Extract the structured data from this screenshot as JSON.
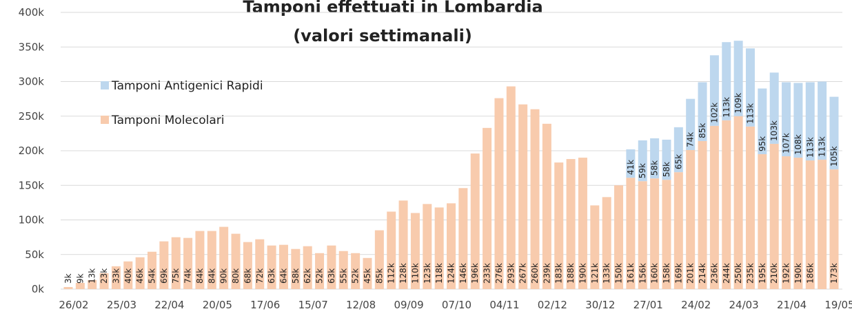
{
  "chart_data": {
    "type": "stacked_bar",
    "title_lines": [
      "Tamponi effettuati in Lombardia",
      "(valori settimanali)"
    ],
    "categories": [
      "26/02",
      null,
      null,
      null,
      "25/03",
      null,
      null,
      null,
      "22/04",
      null,
      null,
      null,
      "20/05",
      null,
      null,
      null,
      "17/06",
      null,
      null,
      null,
      "15/07",
      null,
      null,
      null,
      "12/08",
      null,
      null,
      null,
      "09/09",
      null,
      null,
      null,
      "07/10",
      null,
      null,
      null,
      "04/11",
      null,
      null,
      null,
      "02/12",
      null,
      null,
      null,
      "30/12",
      null,
      null,
      null,
      "27/01",
      null,
      null,
      null,
      "24/02",
      null,
      null,
      null,
      "24/03",
      null,
      null,
      null,
      "21/04",
      null,
      null,
      null,
      "19/05"
    ],
    "series": [
      {
        "name": "Tamponi Molecolari",
        "color": "#f8cbad",
        "values": [
          3000,
          9000,
          13000,
          23000,
          33000,
          40000,
          46000,
          54000,
          69000,
          75000,
          74000,
          84000,
          84000,
          90000,
          80000,
          68000,
          72000,
          63000,
          64000,
          58000,
          62000,
          52000,
          63000,
          55000,
          52000,
          45000,
          85000,
          112000,
          128000,
          110000,
          123000,
          118000,
          124000,
          146000,
          196000,
          233000,
          276000,
          293000,
          267000,
          260000,
          239000,
          183000,
          188000,
          190000,
          121000,
          133000,
          150000,
          161000,
          156000,
          160000,
          158000,
          169000,
          201000,
          214000,
          236000,
          244000,
          250000,
          235000,
          195000,
          210000,
          192000,
          190000,
          186000,
          187000,
          173000
        ],
        "value_labels": [
          "3k",
          "9k",
          "13k",
          "23k",
          "33k",
          "40k",
          "46k",
          "54k",
          "69k",
          "75k",
          "74k",
          "84k",
          "84k",
          "90k",
          "80k",
          "68k",
          "72k",
          "63k",
          "64k",
          "58k",
          "62k",
          "52k",
          "63k",
          "55k",
          "52k",
          "45k",
          "85k",
          "112k",
          "128k",
          "110k",
          "123k",
          "118k",
          "124k",
          "146k",
          "196k",
          "233k",
          "276k",
          "293k",
          "267k",
          "260k",
          "239k",
          "183k",
          "188k",
          "190k",
          "121k",
          "133k",
          "150k",
          "161k",
          "156k",
          "160k",
          "158k",
          "169k",
          "201k",
          "214k",
          "236k",
          "244k",
          "250k",
          "235k",
          "195k",
          "210k",
          "192k",
          "190k",
          "186k",
          null,
          "173k"
        ]
      },
      {
        "name": "Tamponi Antigenici Rapidi",
        "color": "#bdd7ee",
        "values": [
          null,
          null,
          null,
          null,
          null,
          null,
          null,
          null,
          null,
          null,
          null,
          null,
          null,
          null,
          null,
          null,
          null,
          null,
          null,
          null,
          null,
          null,
          null,
          null,
          null,
          null,
          null,
          null,
          null,
          null,
          null,
          null,
          null,
          null,
          null,
          null,
          null,
          null,
          null,
          null,
          null,
          null,
          null,
          null,
          null,
          null,
          null,
          41000,
          59000,
          58000,
          58000,
          65000,
          74000,
          85000,
          102000,
          113000,
          109000,
          113000,
          95000,
          103000,
          107000,
          108000,
          113000,
          113000,
          105000
        ],
        "value_labels": [
          null,
          null,
          null,
          null,
          null,
          null,
          null,
          null,
          null,
          null,
          null,
          null,
          null,
          null,
          null,
          null,
          null,
          null,
          null,
          null,
          null,
          null,
          null,
          null,
          null,
          null,
          null,
          null,
          null,
          null,
          null,
          null,
          null,
          null,
          null,
          null,
          null,
          null,
          null,
          null,
          null,
          null,
          null,
          null,
          null,
          null,
          null,
          "41k",
          "59k",
          "58k",
          "58k",
          "65k",
          "74k",
          "85k",
          "102k",
          "113k",
          "109k",
          "113k",
          "95k",
          "103k",
          "107k",
          "108k",
          "113k",
          "113k",
          "105k"
        ]
      }
    ],
    "ylim": [
      0,
      400000
    ],
    "yticks": [
      {
        "value": 0,
        "label": "0k"
      },
      {
        "value": 50000,
        "label": "50k"
      },
      {
        "value": 100000,
        "label": "100k"
      },
      {
        "value": 150000,
        "label": "150k"
      },
      {
        "value": 200000,
        "label": "200k"
      },
      {
        "value": 250000,
        "label": "250k"
      },
      {
        "value": 300000,
        "label": "300k"
      },
      {
        "value": 350000,
        "label": "350k"
      },
      {
        "value": 400000,
        "label": "400k"
      }
    ],
    "grid": true
  }
}
